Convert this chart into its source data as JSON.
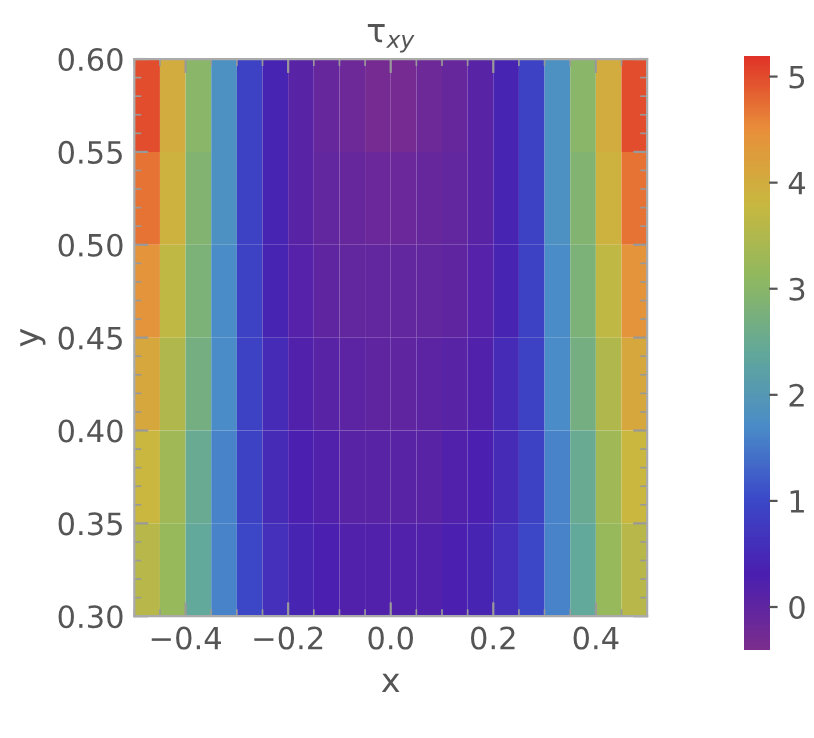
{
  "chart_data": {
    "type": "heatmap",
    "title": "τ$_{xy}$",
    "xlabel": "x",
    "ylabel": "y",
    "x": [
      -0.475,
      -0.425,
      -0.375,
      -0.325,
      -0.275,
      -0.225,
      -0.175,
      -0.125,
      -0.075,
      -0.025,
      0.025,
      0.075,
      0.125,
      0.175,
      0.225,
      0.275,
      0.325,
      0.375,
      0.425,
      0.475
    ],
    "y": [
      0.575,
      0.525,
      0.475,
      0.425,
      0.375,
      0.325
    ],
    "cells": [
      [
        5.0,
        4.0,
        3.0,
        1.8,
        0.9,
        0.4,
        0.1,
        -0.1,
        -0.2,
        -0.3,
        -0.3,
        -0.2,
        -0.1,
        0.1,
        0.4,
        0.9,
        1.8,
        3.0,
        4.0,
        5.0
      ],
      [
        4.7,
        3.9,
        2.9,
        1.8,
        0.9,
        0.4,
        0.1,
        -0.05,
        -0.1,
        -0.15,
        -0.15,
        -0.1,
        -0.05,
        0.1,
        0.4,
        0.9,
        1.8,
        2.9,
        3.9,
        4.7
      ],
      [
        4.4,
        3.7,
        2.8,
        1.7,
        0.9,
        0.4,
        0.15,
        0.0,
        -0.05,
        -0.05,
        -0.05,
        -0.05,
        0.0,
        0.15,
        0.4,
        0.9,
        1.7,
        2.8,
        3.7,
        4.4
      ],
      [
        4.1,
        3.5,
        2.7,
        1.7,
        0.9,
        0.5,
        0.2,
        0.1,
        0.05,
        0.0,
        0.0,
        0.05,
        0.1,
        0.2,
        0.5,
        0.9,
        1.7,
        2.7,
        3.5,
        4.1
      ],
      [
        3.8,
        3.3,
        2.5,
        1.6,
        0.9,
        0.5,
        0.3,
        0.2,
        0.1,
        0.1,
        0.1,
        0.1,
        0.2,
        0.3,
        0.5,
        0.9,
        1.6,
        2.5,
        3.3,
        3.8
      ],
      [
        3.6,
        3.2,
        2.4,
        1.6,
        1.0,
        0.6,
        0.4,
        0.3,
        0.2,
        0.2,
        0.2,
        0.2,
        0.3,
        0.4,
        0.6,
        1.0,
        1.6,
        2.4,
        3.2,
        3.6
      ]
    ],
    "colors": [
      "#7b2d8e",
      "#4a1fb0",
      "#3b48c8",
      "#4a8cc8",
      "#62a89a",
      "#8fb860",
      "#c8b840",
      "#e8903a",
      "#e03228"
    ],
    "xlim": [
      -0.5,
      0.5
    ],
    "ylim": [
      0.3,
      0.6
    ],
    "xticks": [
      {
        "value": -0.4,
        "label": "−0.4"
      },
      {
        "value": -0.2,
        "label": "−0.2"
      },
      {
        "value": 0.0,
        "label": "0.0"
      },
      {
        "value": 0.2,
        "label": "0.2"
      },
      {
        "value": 0.4,
        "label": "0.4"
      }
    ],
    "yticks": [
      {
        "value": 0.3,
        "label": "0.30"
      },
      {
        "value": 0.35,
        "label": "0.35"
      },
      {
        "value": 0.4,
        "label": "0.40"
      },
      {
        "value": 0.45,
        "label": "0.45"
      },
      {
        "value": 0.5,
        "label": "0.50"
      },
      {
        "value": 0.55,
        "label": "0.55"
      },
      {
        "value": 0.6,
        "label": "0.60"
      }
    ],
    "clim": [
      -0.4,
      5.2
    ],
    "cticks": [
      0,
      1,
      2,
      3,
      4,
      5
    ]
  }
}
